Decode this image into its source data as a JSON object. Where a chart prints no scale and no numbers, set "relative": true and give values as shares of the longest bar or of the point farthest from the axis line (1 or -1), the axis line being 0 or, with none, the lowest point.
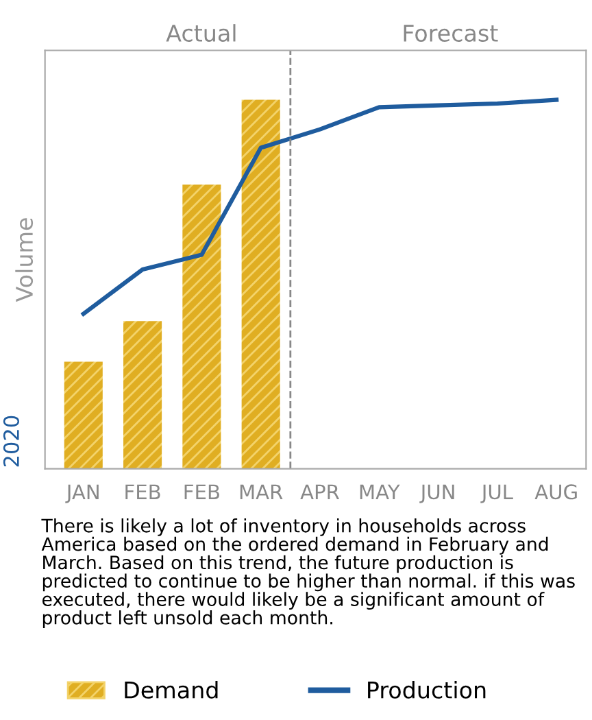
{
  "chart_data": {
    "type": "bar",
    "relative": true,
    "ylabel": "Volume",
    "categories": [
      "JAN",
      "FEB",
      "FEB",
      "MAR",
      "APR",
      "MAY",
      "JUN",
      "JUL",
      "AUG"
    ],
    "series": [
      {
        "name": "Demand",
        "color": "#e0ae22",
        "values": [
          0.29,
          0.4,
          0.77,
          1.0,
          null,
          null,
          null,
          null,
          null
        ]
      },
      {
        "name": "Production",
        "type": "line",
        "color": "#1f5c9e",
        "values": [
          0.42,
          0.54,
          0.58,
          0.87,
          0.92,
          0.98,
          0.985,
          0.99,
          1.0
        ]
      }
    ],
    "annotations": [
      "Actual",
      "Forecast",
      "2020",
      "There is likely a lot of inventory in households across America based on the ordered demand in February and March. Based on this trend, the future production is predicted to continue to be higher than normal. if this was executed, there would likely be a significant amount of product left unsold each month."
    ],
    "legend": "bottom",
    "grid": false,
    "marker": "none",
    "line_style": "solid"
  }
}
